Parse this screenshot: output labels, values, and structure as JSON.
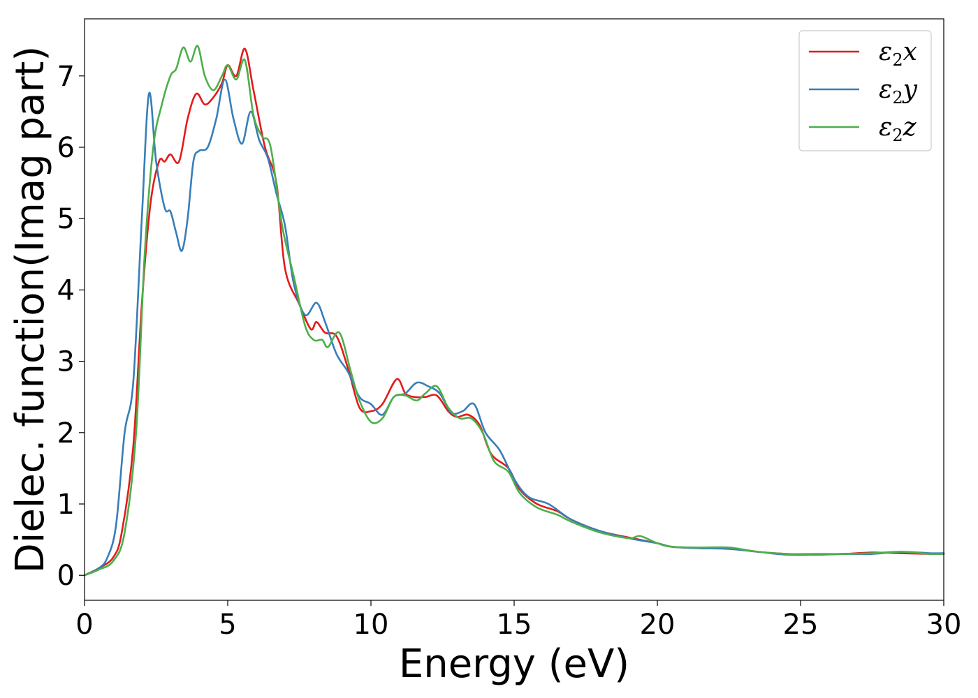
{
  "chart_data": {
    "type": "line",
    "title": "",
    "xlabel": "Energy (eV)",
    "ylabel": "Dielec. function(Imag part)",
    "xlim": [
      0,
      30
    ],
    "ylim": [
      -0.35,
      7.8
    ],
    "xticks": [
      0,
      5,
      10,
      15,
      20,
      25,
      30
    ],
    "yticks": [
      0,
      1,
      2,
      3,
      4,
      5,
      6,
      7
    ],
    "xtick_labels": [
      "0",
      "5",
      "10",
      "15",
      "20",
      "25",
      "30"
    ],
    "ytick_labels": [
      "0",
      "1",
      "2",
      "3",
      "4",
      "5",
      "6",
      "7"
    ],
    "grid": false,
    "legend_position": "top-right",
    "series": [
      {
        "name": "ε2x",
        "legend_base": "ε",
        "legend_sub": "2",
        "legend_var": "x",
        "color": "#e41a1c",
        "x": [
          0,
          0.5,
          1.0,
          1.3,
          1.7,
          2.0,
          2.3,
          2.6,
          2.8,
          3.0,
          3.3,
          3.6,
          3.9,
          4.2,
          4.5,
          4.8,
          5.0,
          5.3,
          5.6,
          5.9,
          6.3,
          6.7,
          7.0,
          7.5,
          7.9,
          8.1,
          8.4,
          8.8,
          9.2,
          9.6,
          10.0,
          10.4,
          10.9,
          11.2,
          11.5,
          11.9,
          12.3,
          12.7,
          13.0,
          13.4,
          13.8,
          14.2,
          14.8,
          15.2,
          15.8,
          16.5,
          17.0,
          18.0,
          19.0,
          20.0,
          20.5,
          21.5,
          22.5,
          23.5,
          24.5,
          25.5,
          26.5,
          27.5,
          28.5,
          29.5,
          30.0
        ],
        "values": [
          0.0,
          0.1,
          0.25,
          0.6,
          1.8,
          3.8,
          5.2,
          5.8,
          5.8,
          5.9,
          5.8,
          6.4,
          6.75,
          6.6,
          6.7,
          6.9,
          7.15,
          7.0,
          7.38,
          6.8,
          6.0,
          5.5,
          4.3,
          3.8,
          3.45,
          3.55,
          3.4,
          3.35,
          2.9,
          2.35,
          2.3,
          2.4,
          2.75,
          2.55,
          2.5,
          2.5,
          2.52,
          2.3,
          2.22,
          2.25,
          2.1,
          1.7,
          1.5,
          1.2,
          1.0,
          0.9,
          0.78,
          0.62,
          0.53,
          0.45,
          0.4,
          0.38,
          0.38,
          0.33,
          0.3,
          0.29,
          0.3,
          0.32,
          0.31,
          0.3,
          0.3
        ]
      },
      {
        "name": "ε2y",
        "legend_base": "ε",
        "legend_sub": "2",
        "legend_var": "y",
        "color": "#377eb8",
        "x": [
          0,
          0.5,
          0.8,
          1.1,
          1.4,
          1.7,
          2.0,
          2.25,
          2.5,
          2.8,
          3.0,
          3.2,
          3.4,
          3.6,
          3.8,
          4.0,
          4.3,
          4.6,
          4.9,
          5.2,
          5.5,
          5.8,
          6.1,
          6.4,
          6.7,
          7.0,
          7.3,
          7.7,
          8.1,
          8.4,
          8.8,
          9.2,
          9.6,
          10.0,
          10.4,
          10.8,
          11.2,
          11.6,
          12.0,
          12.4,
          12.8,
          13.2,
          13.6,
          14.0,
          14.5,
          15.0,
          15.5,
          16.2,
          17.0,
          18.0,
          19.0,
          20.0,
          20.5,
          21.5,
          22.5,
          23.5,
          24.5,
          25.5,
          26.5,
          27.5,
          28.5,
          29.5,
          30.0
        ],
        "values": [
          0.0,
          0.1,
          0.25,
          0.7,
          2.0,
          2.7,
          5.0,
          6.75,
          5.8,
          5.15,
          5.1,
          4.8,
          4.55,
          5.0,
          5.8,
          5.95,
          6.0,
          6.4,
          6.95,
          6.4,
          6.05,
          6.5,
          6.1,
          5.85,
          5.35,
          4.9,
          4.1,
          3.65,
          3.82,
          3.55,
          3.1,
          2.85,
          2.5,
          2.4,
          2.25,
          2.5,
          2.55,
          2.7,
          2.65,
          2.55,
          2.28,
          2.3,
          2.4,
          2.0,
          1.75,
          1.35,
          1.1,
          1.0,
          0.78,
          0.62,
          0.52,
          0.45,
          0.4,
          0.38,
          0.37,
          0.33,
          0.29,
          0.29,
          0.3,
          0.3,
          0.33,
          0.31,
          0.31
        ]
      },
      {
        "name": "ε2z",
        "legend_base": "ε",
        "legend_sub": "2",
        "legend_var": "z",
        "color": "#4daf4a",
        "x": [
          0,
          0.5,
          1.0,
          1.4,
          1.8,
          2.1,
          2.4,
          2.7,
          3.0,
          3.2,
          3.45,
          3.7,
          3.95,
          4.2,
          4.5,
          4.8,
          5.0,
          5.3,
          5.6,
          5.9,
          6.2,
          6.5,
          6.9,
          7.3,
          7.7,
          8.0,
          8.3,
          8.5,
          8.9,
          9.3,
          9.6,
          10.0,
          10.4,
          10.8,
          11.2,
          11.6,
          11.9,
          12.3,
          12.7,
          13.1,
          13.5,
          13.9,
          14.3,
          14.8,
          15.2,
          15.8,
          16.5,
          17.0,
          18.0,
          19.0,
          19.4,
          20.0,
          20.5,
          21.5,
          22.5,
          23.5,
          24.5,
          25.5,
          26.5,
          27.5,
          28.5,
          29.5,
          30.0
        ],
        "values": [
          0.0,
          0.08,
          0.2,
          0.6,
          2.0,
          4.5,
          6.0,
          6.6,
          7.0,
          7.1,
          7.4,
          7.2,
          7.42,
          7.0,
          6.8,
          7.0,
          7.15,
          6.95,
          7.22,
          6.45,
          6.15,
          6.0,
          4.9,
          4.2,
          3.5,
          3.3,
          3.3,
          3.2,
          3.4,
          2.85,
          2.45,
          2.15,
          2.2,
          2.5,
          2.52,
          2.45,
          2.55,
          2.65,
          2.35,
          2.2,
          2.2,
          2.0,
          1.6,
          1.45,
          1.15,
          0.95,
          0.85,
          0.75,
          0.6,
          0.52,
          0.55,
          0.45,
          0.4,
          0.39,
          0.39,
          0.33,
          0.3,
          0.3,
          0.3,
          0.31,
          0.33,
          0.3,
          0.3
        ]
      }
    ]
  }
}
